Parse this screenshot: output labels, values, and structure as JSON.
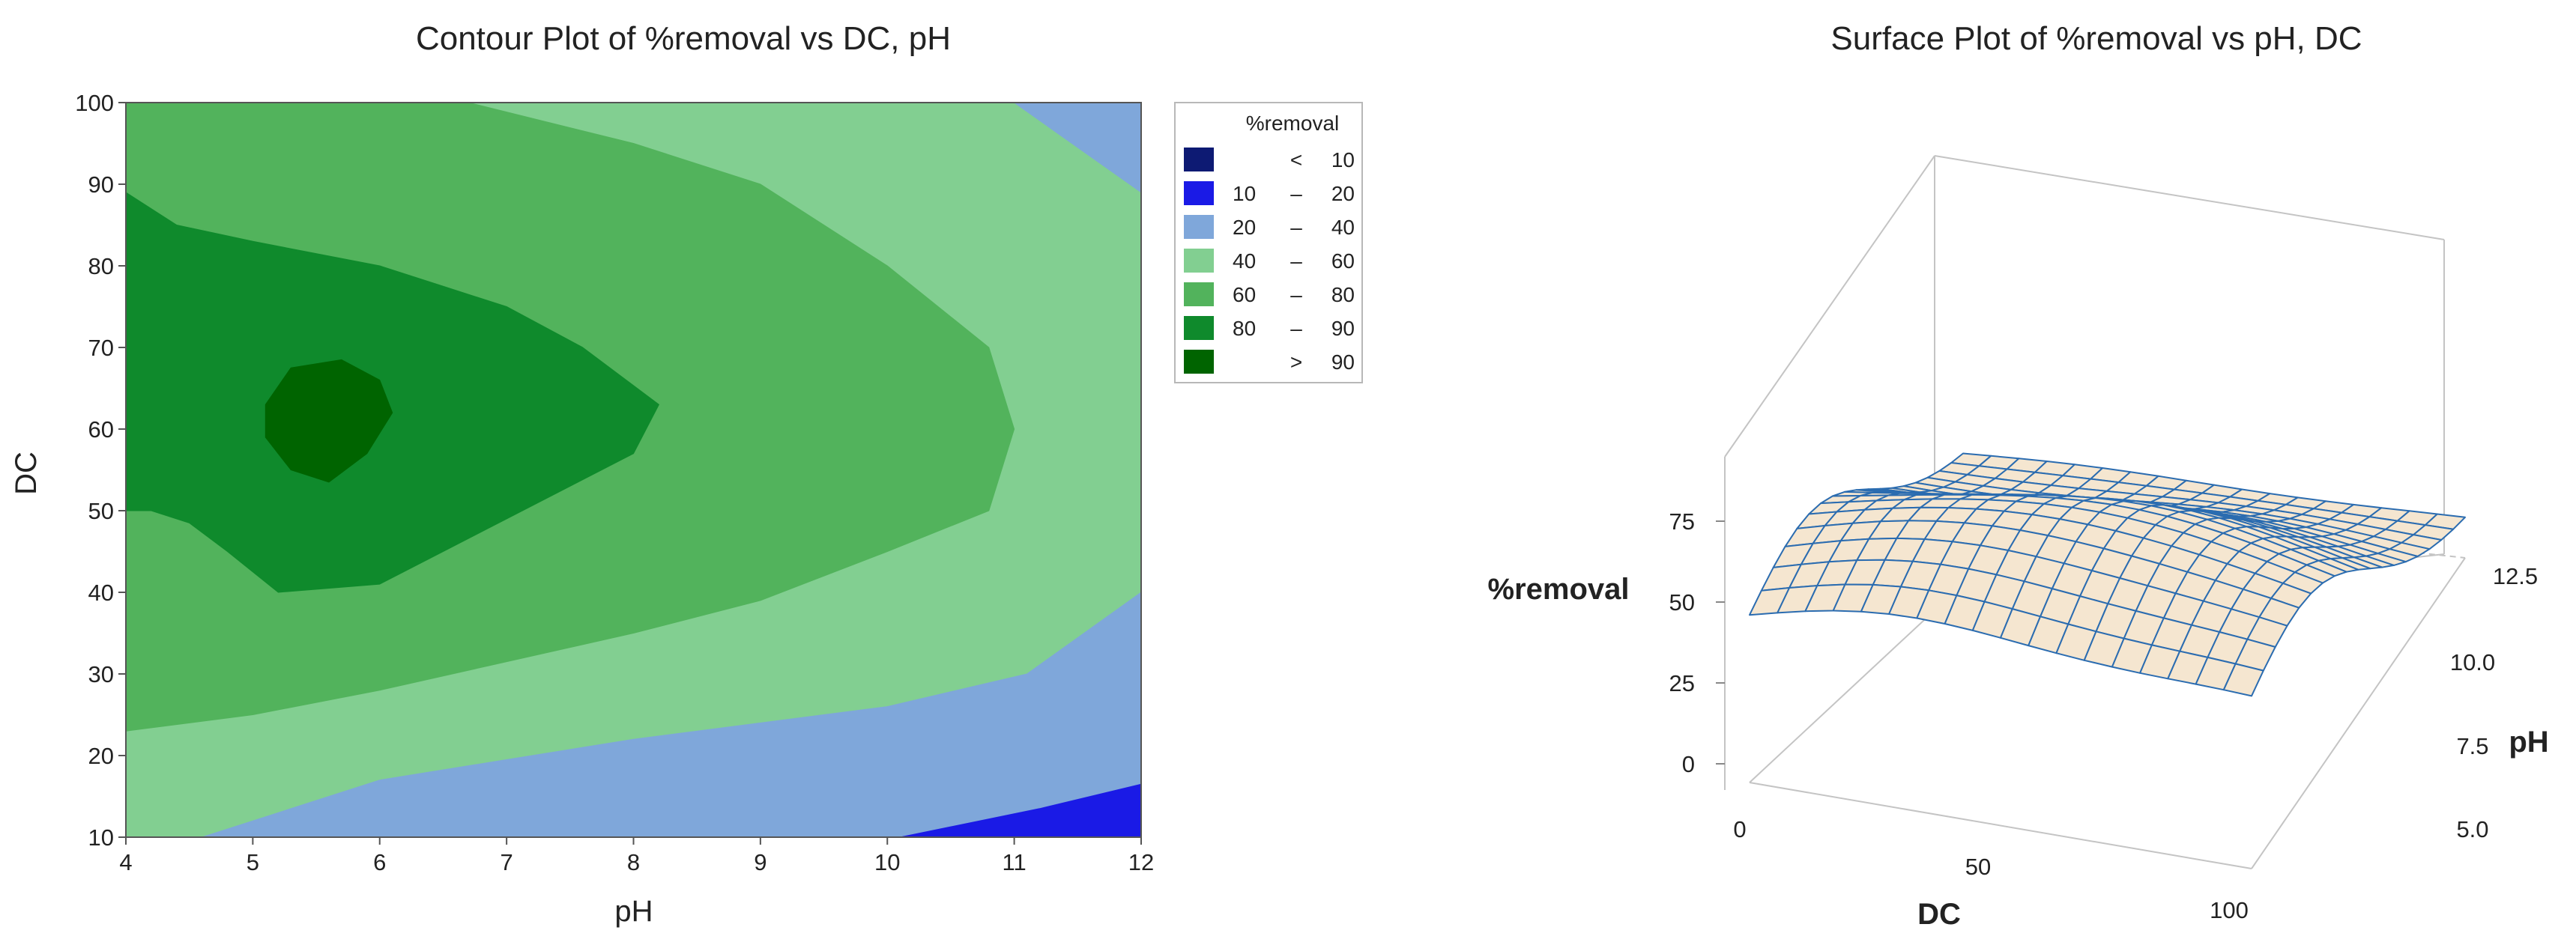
{
  "chart_data": [
    {
      "type": "contour",
      "title": "Contour Plot of %removal vs DC, pH",
      "xlabel": "pH",
      "ylabel": "DC",
      "xlim": [
        4,
        12
      ],
      "ylim": [
        10,
        100
      ],
      "xticks": [
        "4",
        "5",
        "6",
        "7",
        "8",
        "9",
        "10",
        "11",
        "12"
      ],
      "yticks": [
        "10",
        "20",
        "30",
        "40",
        "50",
        "60",
        "70",
        "80",
        "90",
        "100"
      ],
      "legend": {
        "title": "%removal",
        "placement": "right",
        "entries": [
          {
            "low": "",
            "sep": "<",
            "high": "10",
            "color": "#0d1a73"
          },
          {
            "low": "10",
            "sep": "–",
            "high": "20",
            "color": "#1a1ae6"
          },
          {
            "low": "20",
            "sep": "–",
            "high": "40",
            "color": "#7fa7da"
          },
          {
            "low": "40",
            "sep": "–",
            "high": "60",
            "color": "#82cf91"
          },
          {
            "low": "60",
            "sep": "–",
            "high": "80",
            "color": "#52b35c"
          },
          {
            "low": "80",
            "sep": "–",
            "high": "90",
            "color": "#0f8a2c"
          },
          {
            "low": "",
            "sep": ">",
            "high": "90",
            "color": "#006400"
          }
        ]
      },
      "regions": [
        {
          "level": "20 – 40",
          "color": "#7fa7da",
          "polygon": [
            [
              10.0,
              10
            ],
            [
              12,
              10
            ],
            [
              12,
              40
            ],
            [
              11.1,
              30
            ],
            [
              10,
              26
            ],
            [
              8,
              22
            ],
            [
              6,
              17
            ],
            [
              5.2,
              13
            ],
            [
              4.6,
              10
            ]
          ]
        },
        {
          "level": "20 – 40",
          "color": "#7fa7da",
          "polygon": [
            [
              11.0,
              100
            ],
            [
              12,
              100
            ],
            [
              12,
              89
            ]
          ]
        },
        {
          "level": "10 – 20",
          "color": "#1a1ae6",
          "polygon": [
            [
              10.1,
              10
            ],
            [
              12,
              10
            ],
            [
              12,
              16.5
            ],
            [
              11.2,
              13.5
            ]
          ]
        },
        {
          "level": "60 – 80",
          "color": "#52b35c",
          "polygon": [
            [
              4,
              100
            ],
            [
              6.7,
              100
            ],
            [
              8,
              95
            ],
            [
              9,
              90
            ],
            [
              10,
              80
            ],
            [
              10.8,
              70
            ],
            [
              11.0,
              60
            ],
            [
              10.8,
              50
            ],
            [
              10,
              45
            ],
            [
              9,
              39
            ],
            [
              8,
              35
            ],
            [
              6,
              28
            ],
            [
              5,
              25
            ],
            [
              4,
              23
            ]
          ]
        },
        {
          "level": "80 – 90",
          "color": "#0f8a2c",
          "polygon": [
            [
              4,
              89
            ],
            [
              4.4,
              85
            ],
            [
              5,
              83
            ],
            [
              6,
              80
            ],
            [
              7,
              75
            ],
            [
              7.6,
              70
            ],
            [
              8.2,
              63
            ],
            [
              8,
              57
            ],
            [
              7,
              49
            ],
            [
              6,
              41
            ],
            [
              5.2,
              40
            ],
            [
              4.8,
              45
            ],
            [
              4.5,
              48.5
            ],
            [
              4.2,
              50
            ],
            [
              4,
              50
            ]
          ]
        },
        {
          "level": "> 90",
          "color": "#006400",
          "polygon": [
            [
              5.1,
              63
            ],
            [
              5.3,
              67.5
            ],
            [
              5.7,
              68.5
            ],
            [
              6,
              66
            ],
            [
              6.1,
              62
            ],
            [
              5.9,
              57
            ],
            [
              5.6,
              53.5
            ],
            [
              5.3,
              55
            ],
            [
              5.1,
              59
            ]
          ]
        }
      ]
    },
    {
      "type": "surface",
      "title": "Surface Plot of %removal vs pH, DC",
      "xlabel": "DC",
      "ylabel": "pH",
      "zlabel": "%removal",
      "xlim": [
        0,
        100
      ],
      "ylim": [
        4,
        12.5
      ],
      "zlim": [
        0,
        75
      ],
      "xticks": [
        "0",
        "50",
        "100"
      ],
      "yticks": [
        "5.0",
        "7.5",
        "10.0",
        "12.5"
      ],
      "zticks": [
        "0",
        "25",
        "50",
        "75"
      ],
      "surface_fill": "#f5e6d0",
      "wire_color": "#2b6cb0"
    }
  ]
}
